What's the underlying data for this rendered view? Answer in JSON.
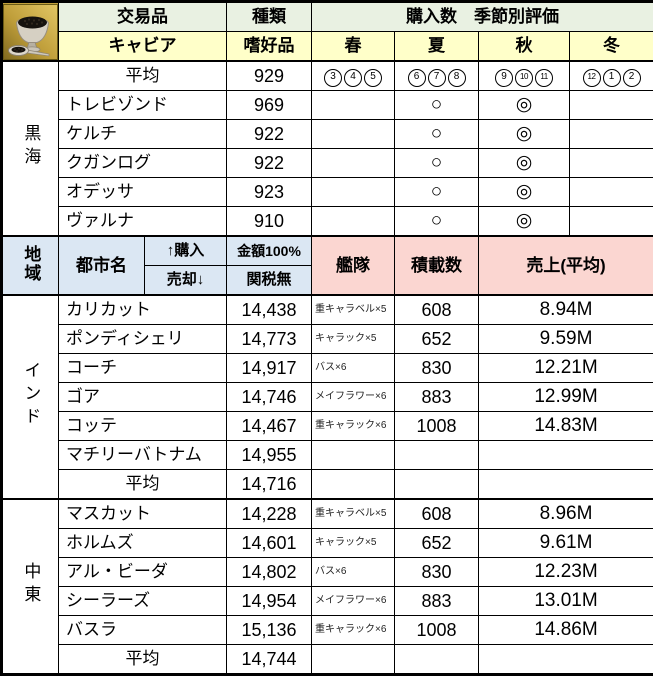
{
  "colors": {
    "header_green": "#e9f1e2",
    "header_yellow": "#ffffc9",
    "header_blue": "#dbe7f3",
    "header_pink": "#fbd6d1",
    "grid": "#000000",
    "icon_gold": "#c2a13d"
  },
  "item_header": {
    "icon": "caviar-icon",
    "trade_good_label": "交易品",
    "item_name": "キャビア",
    "type_label": "種類",
    "type_value": "嗜好品",
    "purchase_season_label": "購入数　季節別評価",
    "seasons": [
      "春",
      "夏",
      "秋",
      "冬"
    ]
  },
  "black_sea": {
    "region": "黒海",
    "average": {
      "label": "平均",
      "qty": "929",
      "month_groups": [
        [
          "3",
          "4",
          "5"
        ],
        [
          "6",
          "7",
          "8"
        ],
        [
          "9",
          "10",
          "11"
        ],
        [
          "12",
          "1",
          "2"
        ]
      ]
    },
    "cities": [
      {
        "name": "トレビゾンド",
        "qty": "969",
        "spring": "",
        "summer": "○",
        "autumn": "◎",
        "winter": ""
      },
      {
        "name": "ケルチ",
        "qty": "922",
        "spring": "",
        "summer": "○",
        "autumn": "◎",
        "winter": ""
      },
      {
        "name": "クガンログ",
        "qty": "922",
        "spring": "",
        "summer": "○",
        "autumn": "◎",
        "winter": ""
      },
      {
        "name": "オデッサ",
        "qty": "923",
        "spring": "",
        "summer": "○",
        "autumn": "◎",
        "winter": ""
      },
      {
        "name": "ヴァルナ",
        "qty": "910",
        "spring": "",
        "summer": "○",
        "autumn": "◎",
        "winter": ""
      }
    ]
  },
  "section_header": {
    "region_label": "地域",
    "city_label": "都市名",
    "buy_label": "↑購入",
    "sell_label": "売却↓",
    "amount_label": "金額100%",
    "tax_label": "関税無",
    "fleet_label": "艦隊",
    "capacity_label": "積載数",
    "sales_label": "売上(平均)"
  },
  "india": {
    "region": "インド",
    "cities": [
      {
        "name": "カリカット",
        "price": "14,438",
        "fleet": "重キャラベル×5",
        "capacity": "608",
        "sales": "8.94M"
      },
      {
        "name": "ポンディシェリ",
        "price": "14,773",
        "fleet": "キャラック×5",
        "capacity": "652",
        "sales": "9.59M"
      },
      {
        "name": "コーチ",
        "price": "14,917",
        "fleet": "バス×6",
        "capacity": "830",
        "sales": "12.21M"
      },
      {
        "name": "ゴア",
        "price": "14,746",
        "fleet": "メイフラワー×6",
        "capacity": "883",
        "sales": "12.99M"
      },
      {
        "name": "コッテ",
        "price": "14,467",
        "fleet": "重キャラック×6",
        "capacity": "1008",
        "sales": "14.83M"
      },
      {
        "name": "マチリーバトナム",
        "price": "14,955",
        "fleet": "",
        "capacity": "",
        "sales": ""
      }
    ],
    "average": {
      "label": "平均",
      "price": "14,716"
    }
  },
  "middle_east": {
    "region": "中東",
    "cities": [
      {
        "name": "マスカット",
        "price": "14,228",
        "fleet": "重キャラベル×5",
        "capacity": "608",
        "sales": "8.96M"
      },
      {
        "name": "ホルムズ",
        "price": "14,601",
        "fleet": "キャラック×5",
        "capacity": "652",
        "sales": "9.61M"
      },
      {
        "name": "アル・ビーダ",
        "price": "14,802",
        "fleet": "バス×6",
        "capacity": "830",
        "sales": "12.23M"
      },
      {
        "name": "シーラーズ",
        "price": "14,954",
        "fleet": "メイフラワー×6",
        "capacity": "883",
        "sales": "13.01M"
      },
      {
        "name": "バスラ",
        "price": "15,136",
        "fleet": "重キャラック×6",
        "capacity": "1008",
        "sales": "14.86M"
      }
    ],
    "average": {
      "label": "平均",
      "price": "14,744"
    }
  }
}
